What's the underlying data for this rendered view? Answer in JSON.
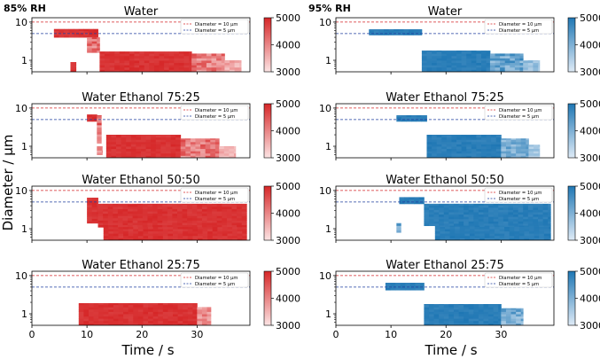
{
  "figure": {
    "ylabel": "Diameter / μm",
    "xlabel": "Time / s",
    "column_labels": [
      "85% RH",
      "95% RH"
    ],
    "x_ticks": [
      0,
      10,
      20,
      30
    ],
    "y_ticks": [
      1,
      10
    ],
    "colorbar_ticks": [
      3000,
      4000,
      5000
    ],
    "legend": [
      "Diameter = 10 μm",
      "Diameter = 5 μm"
    ],
    "ref_line_colors": [
      "#d62728",
      "#1f3f9f"
    ],
    "colors": {
      "red": "#d62728",
      "blue": "#1f77b4"
    }
  },
  "chart_data": [
    {
      "type": "heatmap",
      "title": "Water",
      "condition": "85% RH",
      "cmap": "red",
      "xlim": [
        0,
        39.6
      ],
      "ylim": [
        0.5,
        13
      ],
      "zlim": [
        3000,
        5000
      ],
      "ref_lines": [
        10,
        5
      ],
      "regions": [
        {
          "x": [
            4,
            12
          ],
          "d": [
            4,
            6.6
          ],
          "density": 1.0
        },
        {
          "x": [
            10,
            12.3
          ],
          "d": [
            1.6,
            4
          ],
          "density": 0.9
        },
        {
          "x": [
            7,
            8
          ],
          "d": [
            0.5,
            0.9
          ],
          "density": 1.0
        },
        {
          "x": [
            12.3,
            29
          ],
          "d": [
            0.5,
            1.7
          ],
          "density": 1.0
        },
        {
          "x": [
            29,
            35
          ],
          "d": [
            0.5,
            1.5
          ],
          "density": 0.85
        },
        {
          "x": [
            35,
            38
          ],
          "d": [
            0.5,
            1.0
          ],
          "density": 0.45
        }
      ]
    },
    {
      "type": "heatmap",
      "title": "Water",
      "condition": "95% RH",
      "cmap": "blue",
      "xlim": [
        0,
        39.6
      ],
      "ylim": [
        0.5,
        13
      ],
      "zlim": [
        3000,
        5000
      ],
      "ref_lines": [
        10,
        5
      ],
      "regions": [
        {
          "x": [
            6,
            15.6
          ],
          "d": [
            4.6,
            6.5
          ],
          "density": 1.0
        },
        {
          "x": [
            15.6,
            28
          ],
          "d": [
            0.5,
            1.8
          ],
          "density": 1.0
        },
        {
          "x": [
            28,
            34
          ],
          "d": [
            0.5,
            1.5
          ],
          "density": 0.9
        },
        {
          "x": [
            34,
            37
          ],
          "d": [
            0.5,
            1.0
          ],
          "density": 0.5
        }
      ]
    },
    {
      "type": "heatmap",
      "title": "Water Ethanol 75:25",
      "condition": "85% RH",
      "cmap": "red",
      "xlim": [
        0,
        39.6
      ],
      "ylim": [
        0.5,
        13
      ],
      "zlim": [
        3000,
        5000
      ],
      "ref_lines": [
        10,
        5
      ],
      "regions": [
        {
          "x": [
            10,
            11.8
          ],
          "d": [
            4.5,
            6.8
          ],
          "density": 1.0
        },
        {
          "x": [
            11.8,
            12.6
          ],
          "d": [
            1.2,
            6.5
          ],
          "density": 0.9
        },
        {
          "x": [
            11.8,
            12.8
          ],
          "d": [
            0.6,
            1.0
          ],
          "density": 0.7
        },
        {
          "x": [
            13.5,
            27
          ],
          "d": [
            0.5,
            2.0
          ],
          "density": 1.0
        },
        {
          "x": [
            27,
            34
          ],
          "d": [
            0.5,
            1.6
          ],
          "density": 0.85
        },
        {
          "x": [
            34,
            37
          ],
          "d": [
            0.5,
            1.0
          ],
          "density": 0.45
        }
      ]
    },
    {
      "type": "heatmap",
      "title": "Water Ethanol 75:25",
      "condition": "95% RH",
      "cmap": "blue",
      "xlim": [
        0,
        39.6
      ],
      "ylim": [
        0.5,
        13
      ],
      "zlim": [
        3000,
        5000
      ],
      "ref_lines": [
        10,
        5
      ],
      "regions": [
        {
          "x": [
            11,
            16.5
          ],
          "d": [
            4.5,
            6.5
          ],
          "density": 1.0
        },
        {
          "x": [
            16.5,
            30
          ],
          "d": [
            0.5,
            2.0
          ],
          "density": 1.0
        },
        {
          "x": [
            30,
            35
          ],
          "d": [
            0.5,
            1.6
          ],
          "density": 0.8
        },
        {
          "x": [
            35,
            37
          ],
          "d": [
            0.5,
            1.1
          ],
          "density": 0.45
        }
      ]
    },
    {
      "type": "heatmap",
      "title": "Water Ethanol 50:50",
      "condition": "85% RH",
      "cmap": "red",
      "xlim": [
        0,
        39.6
      ],
      "ylim": [
        0.5,
        13
      ],
      "zlim": [
        3000,
        5000
      ],
      "ref_lines": [
        10,
        5
      ],
      "regions": [
        {
          "x": [
            10,
            12
          ],
          "d": [
            1.4,
            6.5
          ],
          "density": 1.0
        },
        {
          "x": [
            12,
            39
          ],
          "d": [
            1.1,
            4.5
          ],
          "density": 1.0
        },
        {
          "x": [
            13,
            39
          ],
          "d": [
            0.5,
            1.1
          ],
          "density": 1.0
        }
      ]
    },
    {
      "type": "heatmap",
      "title": "Water Ethanol 50:50",
      "condition": "95% RH",
      "cmap": "blue",
      "xlim": [
        0,
        39.6
      ],
      "ylim": [
        0.5,
        13
      ],
      "zlim": [
        3000,
        5000
      ],
      "ref_lines": [
        10,
        5
      ],
      "regions": [
        {
          "x": [
            11.5,
            16
          ],
          "d": [
            4.5,
            6.7
          ],
          "density": 1.0
        },
        {
          "x": [
            11,
            11.8
          ],
          "d": [
            0.8,
            1.4
          ],
          "density": 0.9
        },
        {
          "x": [
            16,
            39
          ],
          "d": [
            1.2,
            4.5
          ],
          "density": 1.0
        },
        {
          "x": [
            18,
            39
          ],
          "d": [
            0.5,
            1.2
          ],
          "density": 1.0
        }
      ]
    },
    {
      "type": "heatmap",
      "title": "Water Ethanol 25:75",
      "condition": "85% RH",
      "cmap": "red",
      "xlim": [
        0,
        39.6
      ],
      "ylim": [
        0.5,
        13
      ],
      "zlim": [
        3000,
        5000
      ],
      "ref_lines": [
        10,
        5
      ],
      "regions": [
        {
          "x": [
            8.5,
            30
          ],
          "d": [
            0.5,
            1.9
          ],
          "density": 1.0
        },
        {
          "x": [
            30,
            32.5
          ],
          "d": [
            0.5,
            1.5
          ],
          "density": 0.7
        }
      ]
    },
    {
      "type": "heatmap",
      "title": "Water Ethanol 25:75",
      "condition": "95% RH",
      "cmap": "blue",
      "xlim": [
        0,
        39.6
      ],
      "ylim": [
        0.5,
        13
      ],
      "zlim": [
        3000,
        5000
      ],
      "ref_lines": [
        10,
        5
      ],
      "regions": [
        {
          "x": [
            9,
            16
          ],
          "d": [
            4.2,
            6.5
          ],
          "density": 1.0
        },
        {
          "x": [
            16,
            30
          ],
          "d": [
            0.5,
            1.8
          ],
          "density": 1.0
        },
        {
          "x": [
            30,
            34
          ],
          "d": [
            0.5,
            1.4
          ],
          "density": 0.8
        }
      ]
    }
  ]
}
